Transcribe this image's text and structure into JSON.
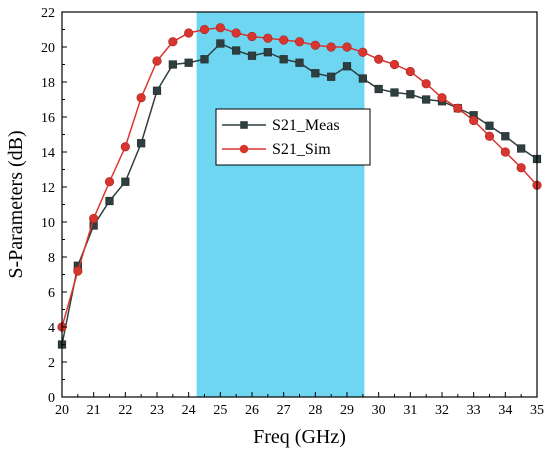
{
  "chart_data": {
    "type": "line",
    "title": "",
    "xlabel": "Freq (GHz)",
    "ylabel": "S-Parameters (dB)",
    "xlim": [
      20,
      35
    ],
    "ylim": [
      0,
      22
    ],
    "x_ticks": [
      20,
      21,
      22,
      23,
      24,
      25,
      26,
      27,
      28,
      29,
      30,
      31,
      32,
      33,
      34,
      35
    ],
    "y_ticks": [
      0,
      2,
      4,
      6,
      8,
      10,
      12,
      14,
      16,
      18,
      20,
      22
    ],
    "grid": false,
    "legend_position": "center",
    "highlight_band": {
      "x_start": 24.25,
      "x_end": 29.55,
      "color": "#6fd6f2"
    },
    "series": [
      {
        "name": "S21_Meas",
        "color": "#2f3f3f",
        "marker": "square",
        "x": [
          20,
          20.5,
          21,
          21.5,
          22,
          22.5,
          23,
          23.5,
          24,
          24.5,
          25,
          25.5,
          26,
          26.5,
          27,
          27.5,
          28,
          28.5,
          29,
          29.5,
          30,
          30.5,
          31,
          31.5,
          32,
          32.5,
          33,
          33.5,
          34,
          34.5,
          35
        ],
        "y": [
          3.0,
          7.5,
          9.8,
          11.2,
          12.3,
          14.5,
          17.5,
          19.0,
          19.1,
          19.3,
          20.2,
          19.8,
          19.5,
          19.7,
          19.3,
          19.1,
          18.5,
          18.3,
          18.9,
          18.2,
          17.6,
          17.4,
          17.3,
          17.0,
          16.9,
          16.5,
          16.1,
          15.5,
          14.9,
          14.2,
          13.6
        ]
      },
      {
        "name": "S21_Sim",
        "color": "#d9352f",
        "marker": "circle",
        "x": [
          20,
          20.5,
          21,
          21.5,
          22,
          22.5,
          23,
          23.5,
          24,
          24.5,
          25,
          25.5,
          26,
          26.5,
          27,
          27.5,
          28,
          28.5,
          29,
          29.5,
          30,
          30.5,
          31,
          31.5,
          32,
          32.5,
          33,
          33.5,
          34,
          34.5,
          35
        ],
        "y": [
          4.0,
          7.2,
          10.2,
          12.3,
          14.3,
          17.1,
          19.2,
          20.3,
          20.8,
          21.0,
          21.1,
          20.8,
          20.6,
          20.5,
          20.4,
          20.3,
          20.1,
          20.0,
          20.0,
          19.7,
          19.3,
          19.0,
          18.6,
          17.9,
          17.1,
          16.5,
          15.8,
          14.9,
          14.0,
          13.1,
          12.1
        ]
      }
    ]
  }
}
